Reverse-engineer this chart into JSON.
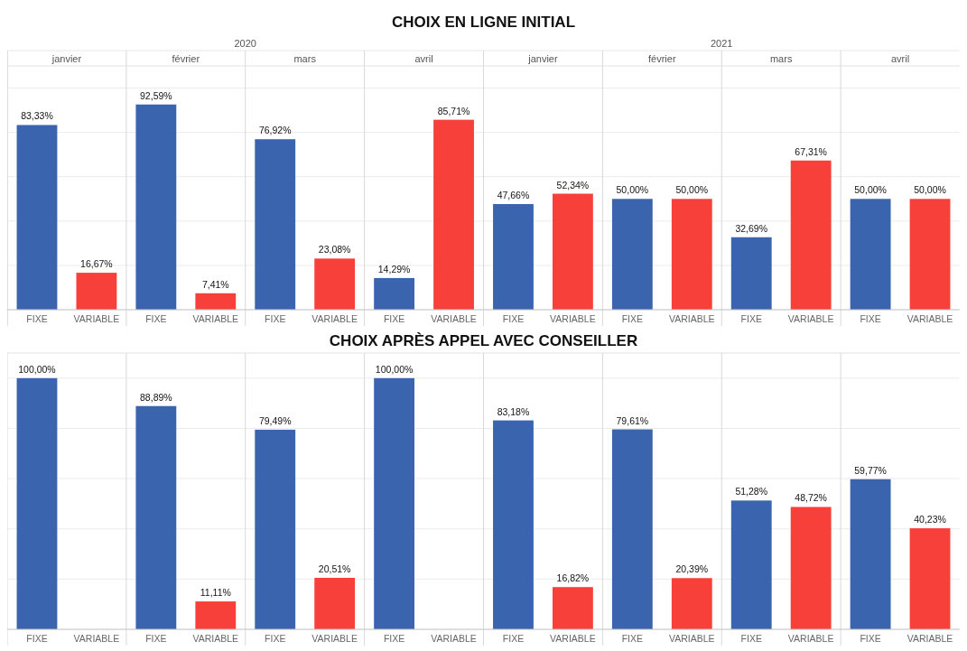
{
  "chart_data": [
    {
      "type": "bar",
      "title": "CHOIX EN LIGNE INITIAL",
      "categories": [
        "janvier",
        "février",
        "mars",
        "avril",
        "janvier",
        "février",
        "mars",
        "avril"
      ],
      "annotations": [
        "2020",
        "2021"
      ],
      "series": [
        {
          "name": "FIXE",
          "color": "#3b64ae",
          "values": [
            83.33,
            92.59,
            76.92,
            14.29,
            47.66,
            50.0,
            32.69,
            50.0
          ],
          "value_labels": [
            "83,33%",
            "92,59%",
            "76,92%",
            "14,29%",
            "47,66%",
            "50,00%",
            "32,69%",
            "50,00%"
          ]
        },
        {
          "name": "VARIABLE",
          "color": "#f7403a",
          "values": [
            16.67,
            7.41,
            23.08,
            85.71,
            52.34,
            50.0,
            67.31,
            50.0
          ],
          "value_labels": [
            "16,67%",
            "7,41%",
            "23,08%",
            "85,71%",
            "52,34%",
            "50,00%",
            "67,31%",
            "50,00%"
          ]
        }
      ],
      "ylim": [
        0,
        110
      ],
      "yticks": [
        0,
        20,
        40,
        60,
        80,
        100
      ],
      "grid": "y",
      "tick_labels": "x"
    },
    {
      "type": "bar",
      "title": "CHOIX APRÈS APPEL AVEC CONSEILLER",
      "categories": [
        null,
        null,
        null,
        null,
        null,
        null,
        null,
        null
      ],
      "series": [
        {
          "name": "FIXE",
          "color": "#3b64ae",
          "values": [
            100.0,
            88.89,
            79.49,
            100.0,
            83.18,
            79.61,
            51.28,
            59.77
          ],
          "value_labels": [
            "100,00%",
            "88,89%",
            "79,49%",
            "100,00%",
            "83,18%",
            "79,61%",
            "51,28%",
            "59,77%"
          ]
        },
        {
          "name": "VARIABLE",
          "color": "#f7403a",
          "values": [
            0,
            11.11,
            20.51,
            0,
            16.82,
            20.39,
            48.72,
            40.23
          ],
          "value_labels": [
            null,
            "11,11%",
            "20,51%",
            null,
            "16,82%",
            "20,39%",
            "48,72%",
            "40,23%"
          ]
        }
      ],
      "ylim": [
        0,
        110
      ],
      "yticks": [
        0,
        20,
        40,
        60,
        80,
        100
      ],
      "grid": "y",
      "tick_labels": false
    }
  ]
}
